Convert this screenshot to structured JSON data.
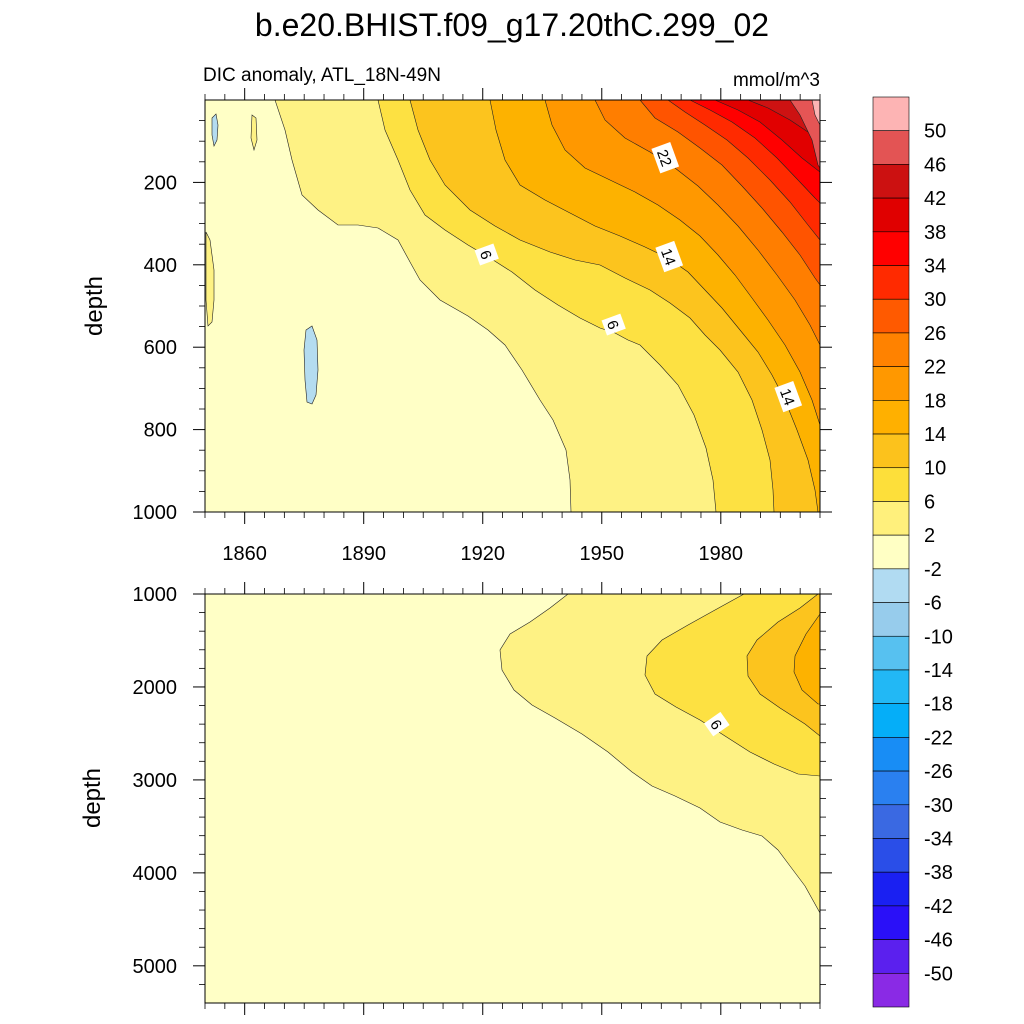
{
  "title": "b.e20.BHIST.f09_g17.20thC.299_02",
  "subtitle_left": "DIC anomaly, ATL_18N-49N",
  "subtitle_right": "mmol/m^3",
  "chart_data": [
    {
      "type": "heatmap",
      "panel": "upper",
      "ylabel": "depth",
      "xlabel": "",
      "xticks": [
        1860,
        1890,
        1920,
        1950,
        1980
      ],
      "xlim": [
        1850,
        2005
      ],
      "yticks": [
        200,
        400,
        600,
        800,
        1000
      ],
      "ylim": [
        0,
        1000
      ],
      "y_reversed": true,
      "contour_labels": [
        {
          "text": "22",
          "x": 1966,
          "y": 140
        },
        {
          "text": "6",
          "x": 1921,
          "y": 375
        },
        {
          "text": "14",
          "x": 1967,
          "y": 380
        },
        {
          "text": "6",
          "x": 1953,
          "y": 545
        },
        {
          "text": "14",
          "x": 1997,
          "y": 720
        }
      ]
    },
    {
      "type": "heatmap",
      "panel": "lower",
      "ylabel": "depth",
      "xlabel": "",
      "yticks": [
        1000,
        2000,
        3000,
        4000,
        5000
      ],
      "ylim": [
        1000,
        5400
      ],
      "y_reversed": true,
      "contour_labels": [
        {
          "text": "6",
          "x": 1979,
          "y": 2400
        }
      ]
    }
  ],
  "colorbar": {
    "labels": [
      "50",
      "46",
      "42",
      "38",
      "34",
      "30",
      "26",
      "22",
      "18",
      "14",
      "10",
      "6",
      "2",
      "-2",
      "-6",
      "-10",
      "-14",
      "-18",
      "-22",
      "-26",
      "-30",
      "-34",
      "-38",
      "-42",
      "-46",
      "-50"
    ],
    "colors": [
      "#fdb4b4",
      "#e35454",
      "#cc1111",
      "#e00000",
      "#ff0000",
      "#ff2a00",
      "#ff5a00",
      "#ff8200",
      "#ff9800",
      "#ffb000",
      "#fcc21c",
      "#fddf3a",
      "#fff07c",
      "#ffffc4",
      "#b1dbf2",
      "#97ccec",
      "#57c1f0",
      "#22b8f5",
      "#05aef8",
      "#188df5",
      "#2a80f0",
      "#3a69e2",
      "#2a4ee8",
      "#1a20f2",
      "#2a10f8",
      "#5b20ee",
      "#8a2ae5"
    ]
  },
  "colors": {
    "c_neg": "#b4dcf0",
    "c_m2_2": "#ffffc6",
    "c_2_6": "#fef284",
    "c_6_10": "#fde142",
    "c_10_14": "#fcc41e",
    "c_14_18": "#fdb200",
    "c_18_22": "#ff9800",
    "c_22_26": "#ff7e00",
    "c_26_30": "#ff5400",
    "c_30_34": "#ff2a00",
    "c_34_38": "#ff0000",
    "c_38_42": "#e10000",
    "c_42_46": "#cd1212",
    "c_46_50": "#e55555",
    "c_50": "#fdb4b4"
  }
}
